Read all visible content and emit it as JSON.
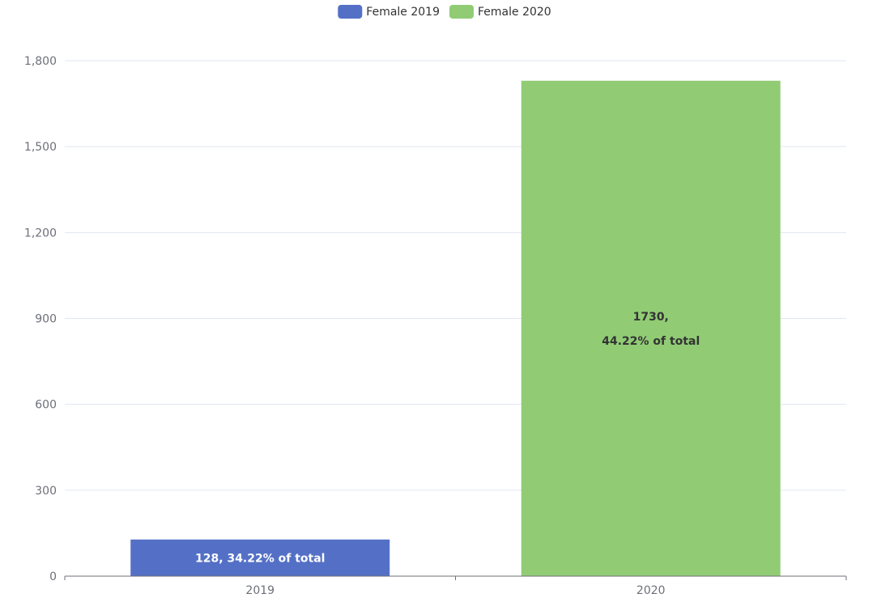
{
  "chart_data": {
    "type": "bar",
    "categories": [
      "2019",
      "2020"
    ],
    "series": [
      {
        "name": "Female 2019",
        "color": "#5470c6",
        "values": [
          128,
          null
        ],
        "labels": [
          [
            "128,  34.22% of total"
          ],
          null
        ],
        "label_color": "#ffffff"
      },
      {
        "name": "Female 2020",
        "color": "#91cc75",
        "values": [
          null,
          1730
        ],
        "labels": [
          null,
          [
            "1730,",
            "44.22% of total"
          ]
        ],
        "label_color": "#333333"
      }
    ],
    "ylim": [
      0,
      1800
    ],
    "yticks": [
      0,
      300,
      600,
      900,
      1200,
      1500,
      1800
    ],
    "ytick_labels": [
      "0",
      "300",
      "600",
      "900",
      "1,200",
      "1,500",
      "1,800"
    ],
    "grid": true,
    "legend": "top-center",
    "title": "",
    "xlabel": "",
    "ylabel": ""
  }
}
